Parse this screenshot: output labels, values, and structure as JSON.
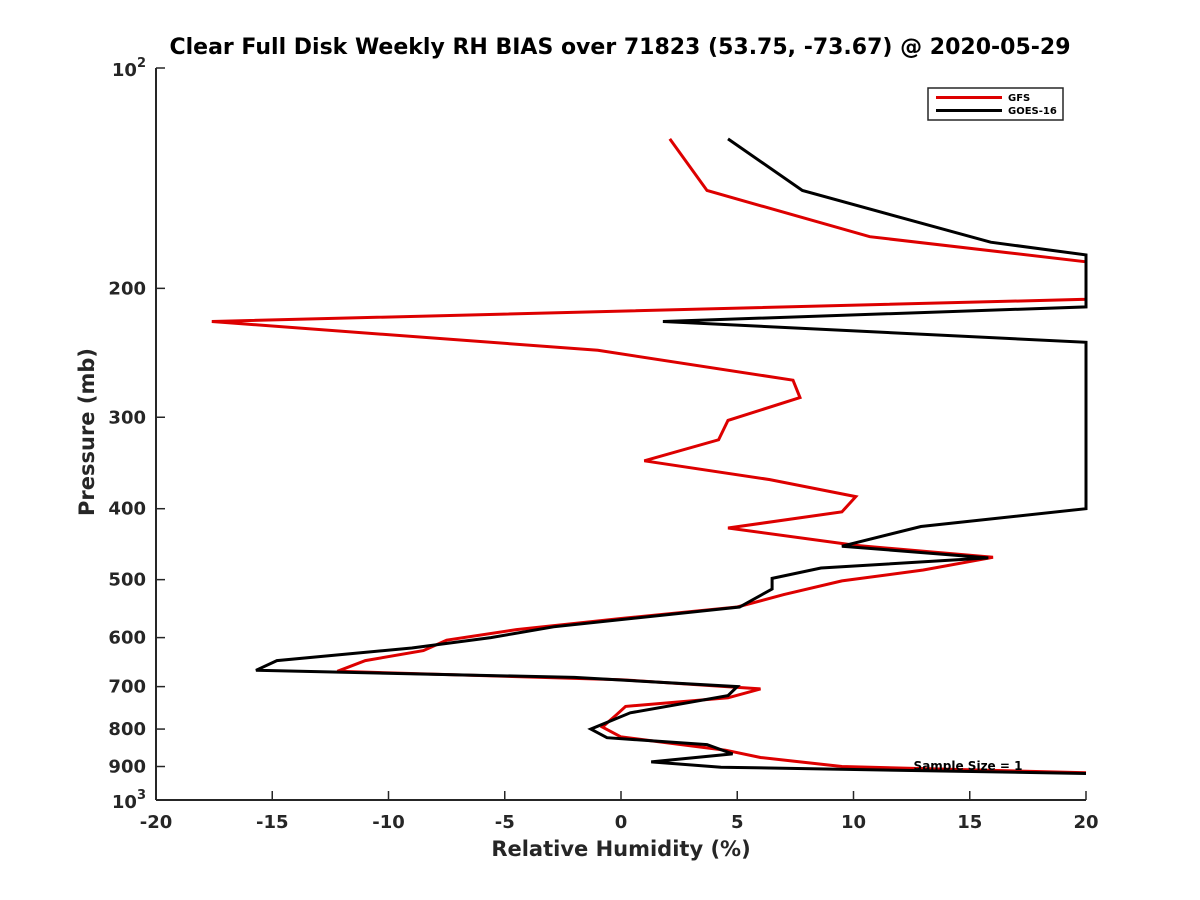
{
  "chart_data": {
    "type": "line",
    "title": "Clear Full Disk Weekly RH BIAS over 71823 (53.75, -73.67) @ 2020-05-29",
    "xlabel": "Relative Humidity (%)",
    "ylabel": "Pressure (mb)",
    "xlim": [
      -20,
      20
    ],
    "ylim": [
      100,
      1000
    ],
    "y_scale": "log",
    "y_reversed": true,
    "grid": false,
    "legend_position": "top-right",
    "x_ticks": [
      -20,
      -15,
      -10,
      -5,
      0,
      5,
      10,
      15,
      20
    ],
    "x_tick_labels": [
      "-20",
      "-15",
      "-10",
      "-5",
      "0",
      "5",
      "10",
      "15",
      "20"
    ],
    "y_ticks": [
      200,
      300,
      400,
      500,
      600,
      700,
      800,
      900
    ],
    "y_tick_labels": [
      "200",
      "300",
      "400",
      "500",
      "600",
      "700",
      "800",
      "900"
    ],
    "y_end_labels": [
      {
        "value": 100,
        "base": "10",
        "exponent": "2"
      },
      {
        "value": 1000,
        "base": "10",
        "exponent": "3"
      }
    ],
    "annotation": "Sample Size = 1",
    "series": [
      {
        "name": "GFS",
        "color": "#dd0000",
        "points": [
          [
            2.1,
            125
          ],
          [
            3.7,
            147
          ],
          [
            10.7,
            170
          ],
          [
            20.6,
            184
          ],
          [
            20.6,
            207
          ],
          [
            -17.6,
            222
          ],
          [
            -1,
            243
          ],
          [
            7.4,
            267
          ],
          [
            7.7,
            282
          ],
          [
            4.6,
            303
          ],
          [
            4.2,
            322
          ],
          [
            1,
            344
          ],
          [
            6.4,
            365
          ],
          [
            10.1,
            385
          ],
          [
            9.5,
            404
          ],
          [
            4.6,
            425
          ],
          [
            10.1,
            449
          ],
          [
            16,
            466
          ],
          [
            13,
            485
          ],
          [
            9.5,
            502
          ],
          [
            7,
            524
          ],
          [
            5,
            545
          ],
          [
            0,
            565
          ],
          [
            -4.5,
            585
          ],
          [
            -7.5,
            605
          ],
          [
            -8.5,
            625
          ],
          [
            -11,
            645
          ],
          [
            -12.2,
            667
          ],
          [
            0,
            685
          ],
          [
            6,
            705
          ],
          [
            4.6,
            725
          ],
          [
            0.2,
            745
          ],
          [
            -0.2,
            765
          ],
          [
            -0.8,
            795
          ],
          [
            0,
            820
          ],
          [
            4.5,
            855
          ],
          [
            6,
            875
          ],
          [
            9.5,
            900
          ],
          [
            20.6,
            918
          ]
        ]
      },
      {
        "name": "GOES-16",
        "color": "#000000",
        "points": [
          [
            4.6,
            125
          ],
          [
            7.8,
            147
          ],
          [
            15.9,
            173
          ],
          [
            20.6,
            180
          ],
          [
            20.6,
            212
          ],
          [
            1.8,
            222
          ],
          [
            20.6,
            237
          ],
          [
            20.6,
            400
          ],
          [
            12.9,
            423
          ],
          [
            9.5,
            450
          ],
          [
            15.8,
            467
          ],
          [
            8.6,
            482
          ],
          [
            6.5,
            498
          ],
          [
            6.5,
            515
          ],
          [
            5.1,
            545
          ],
          [
            -2.9,
            580
          ],
          [
            -5.6,
            600
          ],
          [
            -9,
            620
          ],
          [
            -14.8,
            645
          ],
          [
            -15.7,
            665
          ],
          [
            -2,
            680
          ],
          [
            5,
            700
          ],
          [
            4.6,
            720
          ],
          [
            0.4,
            760
          ],
          [
            -1.3,
            800
          ],
          [
            -0.6,
            822
          ],
          [
            3.7,
            840
          ],
          [
            4.8,
            865
          ],
          [
            1.3,
            887
          ],
          [
            4.3,
            902
          ],
          [
            20.6,
            920
          ]
        ]
      }
    ]
  }
}
